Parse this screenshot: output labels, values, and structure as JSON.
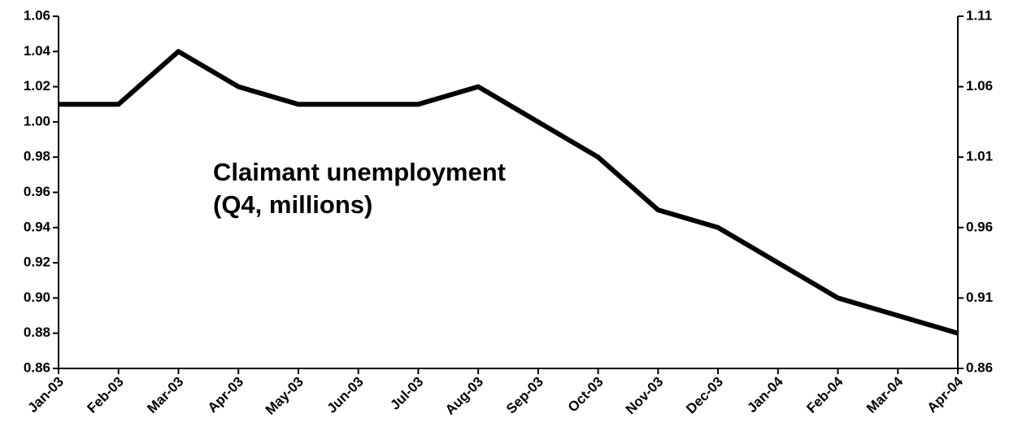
{
  "chart_data": {
    "type": "line",
    "annotation": [
      "Claimant unemployment",
      "(Q4, millions)"
    ],
    "categories": [
      "Jan-03",
      "Feb-03",
      "Mar-03",
      "Apr-03",
      "May-03",
      "Jun-03",
      "Jul-03",
      "Aug-03",
      "Sep-03",
      "Oct-03",
      "Nov-03",
      "Dec-03",
      "Jan-04",
      "Feb-04",
      "Mar-04",
      "Apr-04"
    ],
    "values": [
      1.01,
      1.01,
      1.04,
      1.02,
      1.01,
      1.01,
      1.01,
      1.02,
      1.0,
      0.98,
      0.95,
      0.94,
      0.92,
      0.9,
      0.89,
      0.88
    ],
    "color": "#000000",
    "ylim": [
      0.86,
      1.06
    ],
    "yticks": [
      0.86,
      0.88,
      {
        "value": 0.9,
        "label": "0.90"
      },
      0.92,
      0.94,
      0.96,
      0.98,
      {
        "value": 1,
        "label": "1.00"
      },
      1.02,
      1.04,
      1.06
    ],
    "y2lim": [
      0.86,
      1.11
    ],
    "y2ticks": [
      0.86,
      0.91,
      0.96,
      1.01,
      1.06,
      1.11
    ]
  }
}
